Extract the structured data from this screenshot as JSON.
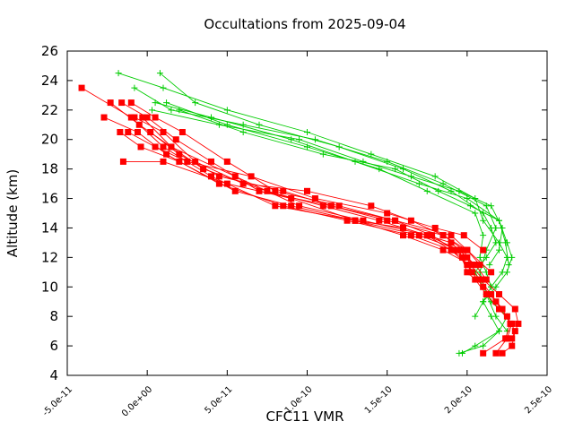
{
  "chart_data": {
    "type": "line",
    "title": "Occultations from 2025-09-04",
    "xlabel": "CFC11 VMR",
    "ylabel": "Altitude (km)",
    "xlim": [
      -5e-11,
      2.5e-10
    ],
    "ylim": [
      4,
      26
    ],
    "xticks": [
      -5e-11,
      0,
      5e-11,
      1e-10,
      1.5e-10,
      2e-10,
      2.5e-10
    ],
    "xtick_labels": [
      "-5.0e-11",
      "0.0e+00",
      "5.0e-11",
      "1.0e-10",
      "1.5e-10",
      "2.0e-10",
      "2.5e-10"
    ],
    "yticks": [
      4,
      6,
      8,
      10,
      12,
      14,
      16,
      18,
      20,
      22,
      24,
      26
    ],
    "ytick_labels": [
      "4",
      "6",
      "8",
      "10",
      "12",
      "14",
      "16",
      "18",
      "20",
      "22",
      "24",
      "26"
    ],
    "grid": false,
    "legend": "none",
    "series": [
      {
        "marker": "plus",
        "color": "#00cc00",
        "profiles": [
          [
            [
              -1.8e-11,
              24.5
            ],
            [
              1e-11,
              23.5
            ],
            [
              5e-11,
              22
            ],
            [
              1e-10,
              20.5
            ],
            [
              1.4e-10,
              19
            ],
            [
              1.8e-10,
              17.5
            ],
            [
              2.05e-10,
              16
            ],
            [
              2.1e-10,
              14.5
            ],
            [
              2.2e-10,
              13
            ],
            [
              2.25e-10,
              12
            ],
            [
              2.22e-10,
              11
            ],
            [
              2.15e-10,
              10
            ],
            [
              2.1e-10,
              9
            ],
            [
              2.15e-10,
              8
            ],
            [
              2.2e-10,
              7
            ],
            [
              2.1e-10,
              6
            ],
            [
              1.95e-10,
              5.5
            ]
          ],
          [
            [
              8e-12,
              24.5
            ],
            [
              3e-11,
              22.5
            ],
            [
              7e-11,
              21
            ],
            [
              1.2e-10,
              19.5
            ],
            [
              1.6e-10,
              18
            ],
            [
              1.9e-10,
              16.5
            ],
            [
              2.1e-10,
              15
            ],
            [
              2.15e-10,
              14
            ],
            [
              2.18e-10,
              13
            ],
            [
              2.12e-10,
              12
            ],
            [
              2.05e-10,
              11
            ],
            [
              2.1e-10,
              10
            ],
            [
              2.15e-10,
              9
            ],
            [
              2.25e-10,
              8
            ],
            [
              2.2e-10,
              7
            ],
            [
              2.05e-10,
              6
            ],
            [
              1.97e-10,
              5.5
            ]
          ],
          [
            [
              -8e-12,
              23.5
            ],
            [
              1.5e-11,
              22
            ],
            [
              6e-11,
              21
            ],
            [
              1.05e-10,
              20
            ],
            [
              1.5e-10,
              18.5
            ],
            [
              1.85e-10,
              17
            ],
            [
              2.12e-10,
              15.5
            ],
            [
              2.18e-10,
              14
            ],
            [
              2.12e-10,
              12.5
            ],
            [
              2.08e-10,
              11
            ],
            [
              2.12e-10,
              9.5
            ],
            [
              2.18e-10,
              8
            ],
            [
              2.25e-10,
              7
            ]
          ],
          [
            [
              5e-12,
              22.5
            ],
            [
              4e-11,
              21.5
            ],
            [
              9e-11,
              20
            ],
            [
              1.3e-10,
              18.5
            ],
            [
              1.7e-10,
              17
            ],
            [
              2e-10,
              16
            ],
            [
              2.2e-10,
              14.5
            ],
            [
              2.25e-10,
              13
            ],
            [
              2.28e-10,
              12
            ],
            [
              2.25e-10,
              11
            ],
            [
              2.18e-10,
              10
            ],
            [
              2.1e-10,
              9
            ],
            [
              2.05e-10,
              8
            ]
          ],
          [
            [
              1.2e-11,
              22.5
            ],
            [
              5e-11,
              21
            ],
            [
              1e-10,
              19.5
            ],
            [
              1.45e-10,
              18
            ],
            [
              1.75e-10,
              16.5
            ],
            [
              2.05e-10,
              15
            ],
            [
              2.1e-10,
              13.5
            ],
            [
              2.08e-10,
              12
            ],
            [
              2.12e-10,
              11
            ],
            [
              2.15e-10,
              10
            ]
          ],
          [
            [
              3e-12,
              22
            ],
            [
              4.5e-11,
              21
            ],
            [
              9.5e-11,
              20
            ],
            [
              1.35e-10,
              18.5
            ],
            [
              1.65e-10,
              17.5
            ],
            [
              1.95e-10,
              16.5
            ],
            [
              2.15e-10,
              15.5
            ],
            [
              2.22e-10,
              14
            ],
            [
              2.2e-10,
              12.5
            ],
            [
              2.14e-10,
              11.5
            ]
          ],
          [
            [
              2e-11,
              22
            ],
            [
              6e-11,
              20.5
            ],
            [
              1.1e-10,
              19
            ],
            [
              1.55e-10,
              18
            ],
            [
              1.82e-10,
              16.5
            ],
            [
              2.02e-10,
              15.5
            ],
            [
              2.2e-10,
              14.5
            ],
            [
              2.24e-10,
              13
            ],
            [
              2.26e-10,
              11.5
            ]
          ]
        ]
      },
      {
        "marker": "square",
        "color": "#ff0000",
        "profiles": [
          [
            [
              -4.1e-11,
              23.5
            ],
            [
              -1e-11,
              21.5
            ],
            [
              1e-11,
              19.5
            ],
            [
              4e-11,
              17.5
            ],
            [
              8e-11,
              15.5
            ],
            [
              1.3e-10,
              14.5
            ],
            [
              1.7e-10,
              13.5
            ],
            [
              1.95e-10,
              12.5
            ],
            [
              2e-10,
              11
            ],
            [
              2.05e-10,
              10.5
            ],
            [
              2.12e-10,
              9.5
            ],
            [
              2.2e-10,
              8.5
            ],
            [
              2.28e-10,
              7.5
            ],
            [
              2.25e-10,
              6.5
            ],
            [
              2.18e-10,
              5.5
            ]
          ],
          [
            [
              -2.3e-11,
              22.5
            ],
            [
              -5e-12,
              21
            ],
            [
              1.5e-11,
              19.5
            ],
            [
              5.5e-11,
              17.5
            ],
            [
              9.5e-11,
              15.5
            ],
            [
              1.35e-10,
              14.5
            ],
            [
              1.75e-10,
              13.5
            ],
            [
              1.97e-10,
              12
            ],
            [
              2.03e-10,
              11
            ],
            [
              2.1e-10,
              10
            ],
            [
              2.18e-10,
              9
            ],
            [
              2.25e-10,
              8
            ],
            [
              2.3e-10,
              7
            ],
            [
              2.28e-10,
              6
            ],
            [
              2.22e-10,
              5.5
            ]
          ],
          [
            [
              -2.7e-11,
              21.5
            ],
            [
              -6e-12,
              20.5
            ],
            [
              1.2e-11,
              19
            ],
            [
              4.5e-11,
              17
            ],
            [
              8.5e-11,
              15.5
            ],
            [
              1.25e-10,
              14.5
            ],
            [
              1.65e-10,
              13.5
            ],
            [
              1.9e-10,
              12.5
            ],
            [
              2e-10,
              11.5
            ],
            [
              2.08e-10,
              10.5
            ],
            [
              2.15e-10,
              9.5
            ],
            [
              2.22e-10,
              8.5
            ],
            [
              2.27e-10,
              7.5
            ],
            [
              2.24e-10,
              6.5
            ],
            [
              2.1e-10,
              5.5
            ]
          ],
          [
            [
              -1.6e-11,
              22.5
            ],
            [
              0,
              21.5
            ],
            [
              1.8e-11,
              20
            ],
            [
              4e-11,
              18.5
            ],
            [
              7e-11,
              16.5
            ],
            [
              1.15e-10,
              15.5
            ],
            [
              1.5e-10,
              14.5
            ],
            [
              1.85e-10,
              13.5
            ],
            [
              1.98e-10,
              12.5
            ],
            [
              2.02e-10,
              11.5
            ],
            [
              2.1e-10,
              10.5
            ],
            [
              2.2e-10,
              9.5
            ],
            [
              2.3e-10,
              8.5
            ],
            [
              2.32e-10,
              7.5
            ],
            [
              2.28e-10,
              6.5
            ]
          ],
          [
            [
              -1e-11,
              22.5
            ],
            [
              5e-12,
              21.5
            ],
            [
              2.2e-11,
              20.5
            ],
            [
              5e-11,
              18.5
            ],
            [
              8e-11,
              16.5
            ],
            [
              1.2e-10,
              15.5
            ],
            [
              1.55e-10,
              14.5
            ],
            [
              1.78e-10,
              13.5
            ],
            [
              1.92e-10,
              12.5
            ],
            [
              2.05e-10,
              11.5
            ],
            [
              2.12e-10,
              10.5
            ]
          ],
          [
            [
              -8e-12,
              21.5
            ],
            [
              1e-11,
              20.5
            ],
            [
              3e-11,
              18.5
            ],
            [
              6e-11,
              17
            ],
            [
              1e-10,
              16.5
            ],
            [
              1.4e-10,
              15.5
            ],
            [
              1.65e-10,
              14.5
            ],
            [
              1.85e-10,
              13.5
            ],
            [
              2e-10,
              12.5
            ],
            [
              2.08e-10,
              11.5
            ]
          ],
          [
            [
              -1.2e-11,
              20.5
            ],
            [
              5e-12,
              19.5
            ],
            [
              2.5e-11,
              18.5
            ],
            [
              6.5e-11,
              17.5
            ],
            [
              1.05e-10,
              16
            ],
            [
              1.5e-10,
              15
            ],
            [
              1.8e-10,
              14
            ],
            [
              1.98e-10,
              13.5
            ],
            [
              2.1e-10,
              12.5
            ]
          ],
          [
            [
              -3e-12,
              21.5
            ],
            [
              1.5e-11,
              19.5
            ],
            [
              3.5e-11,
              18
            ],
            [
              7.5e-11,
              16.5
            ],
            [
              1.1e-10,
              15.5
            ],
            [
              1.45e-10,
              14.5
            ],
            [
              1.75e-10,
              13.5
            ],
            [
              1.95e-10,
              12.5
            ],
            [
              2.05e-10,
              11.5
            ]
          ],
          [
            [
              -1.7e-11,
              20.5
            ],
            [
              -4e-12,
              19.5
            ],
            [
              2e-11,
              18.5
            ],
            [
              5.5e-11,
              16.5
            ],
            [
              9e-11,
              15.5
            ],
            [
              1.3e-10,
              14.5
            ],
            [
              1.6e-10,
              13.5
            ],
            [
              1.85e-10,
              12.5
            ],
            [
              2.02e-10,
              11.5
            ]
          ],
          [
            [
              2e-12,
              20.5
            ],
            [
              2e-11,
              19
            ],
            [
              4.5e-11,
              17.5
            ],
            [
              8.5e-11,
              16.5
            ],
            [
              1.15e-10,
              15.5
            ],
            [
              1.55e-10,
              14.5
            ],
            [
              1.9e-10,
              13.5
            ],
            [
              2e-10,
              12.5
            ],
            [
              2.15e-10,
              11
            ]
          ],
          [
            [
              -1.5e-11,
              18.5
            ],
            [
              1e-11,
              18.5
            ],
            [
              5e-11,
              17
            ],
            [
              9e-11,
              16
            ],
            [
              1.3e-10,
              14.5
            ],
            [
              1.6e-10,
              14
            ],
            [
              1.9e-10,
              13
            ],
            [
              2e-10,
              12
            ]
          ]
        ]
      }
    ]
  }
}
